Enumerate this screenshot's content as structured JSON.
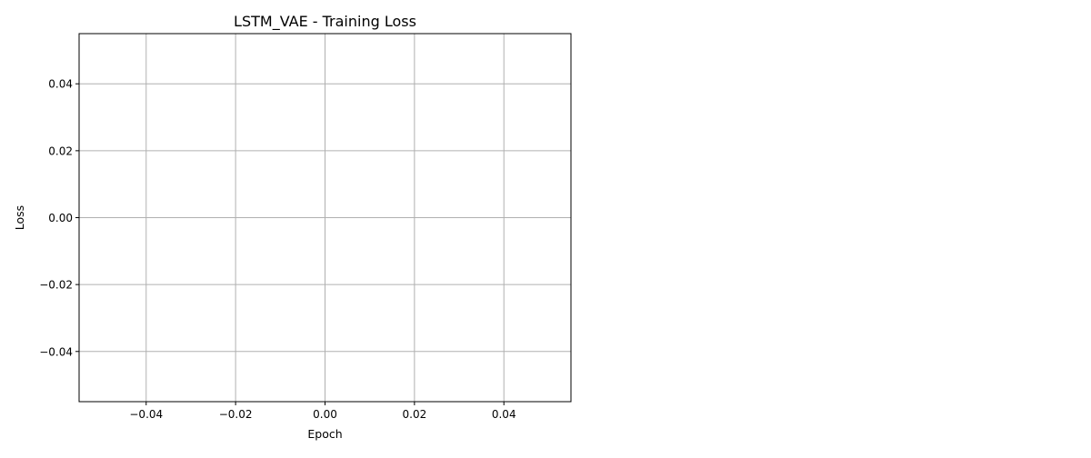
{
  "chart_data": {
    "type": "line",
    "title": "LSTM_VAE - Training Loss",
    "xlabel": "Epoch",
    "ylabel": "Loss",
    "xlim": [
      -0.055,
      0.055
    ],
    "ylim": [
      -0.055,
      0.055
    ],
    "xticks": [
      -0.04,
      -0.02,
      0.0,
      0.02,
      0.04
    ],
    "xtick_labels": [
      "−0.04",
      "−0.02",
      "0.00",
      "0.02",
      "0.04"
    ],
    "yticks": [
      -0.04,
      -0.02,
      0.0,
      0.02,
      0.04
    ],
    "ytick_labels": [
      "−0.04",
      "−0.02",
      "0.00",
      "0.02",
      "0.04"
    ],
    "grid": true,
    "series": []
  }
}
